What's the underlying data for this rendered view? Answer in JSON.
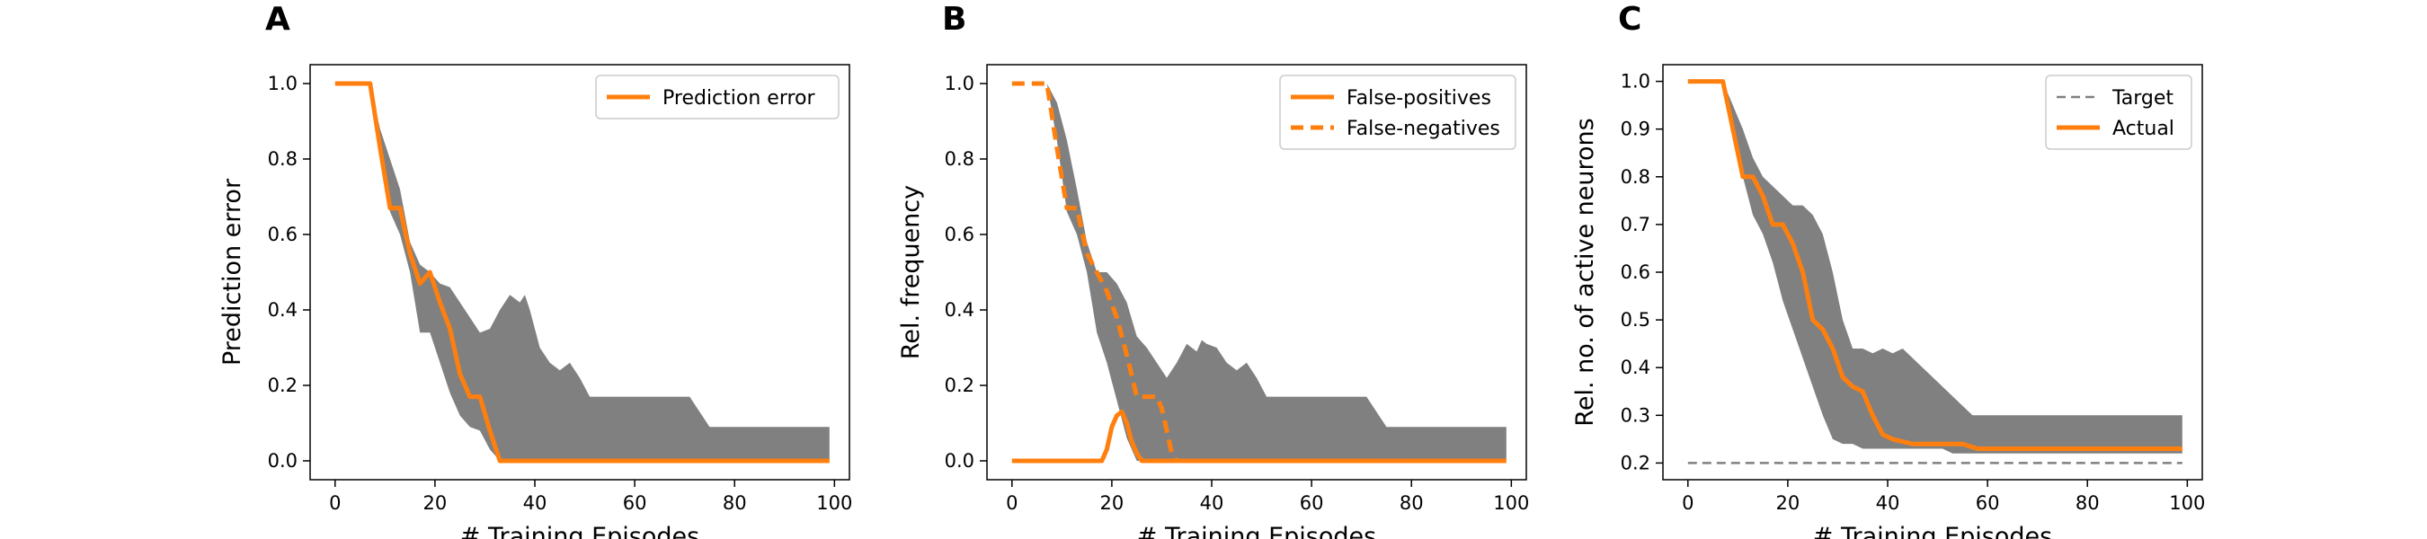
{
  "colors": {
    "series": "#ff7f0e",
    "band": "#808080",
    "target": "#808080",
    "axis": "#000000"
  },
  "chart_data": [
    {
      "panel": "A",
      "type": "line",
      "xlabel": "# Training Episodes",
      "ylabel": "Prediction error",
      "xlim": [
        -5,
        103
      ],
      "ylim": [
        -0.05,
        1.05
      ],
      "xticks": [
        0,
        20,
        40,
        60,
        80,
        100
      ],
      "yticks": [
        0.0,
        0.2,
        0.4,
        0.6,
        0.8,
        1.0
      ],
      "ytick_decimals": 1,
      "legend": "top-right",
      "band": {
        "x": [
          0,
          7,
          9,
          11,
          13,
          15,
          17,
          19,
          21,
          23,
          25,
          27,
          29,
          31,
          33,
          35,
          37,
          38,
          39,
          41,
          43,
          45,
          47,
          49,
          51,
          53,
          55,
          57,
          60,
          65,
          70,
          71,
          75,
          80,
          85,
          90,
          99
        ],
        "upper": [
          1.0,
          1.0,
          0.88,
          0.8,
          0.72,
          0.58,
          0.52,
          0.5,
          0.47,
          0.46,
          0.42,
          0.38,
          0.34,
          0.35,
          0.4,
          0.44,
          0.42,
          0.44,
          0.4,
          0.3,
          0.26,
          0.24,
          0.26,
          0.22,
          0.17,
          0.17,
          0.17,
          0.17,
          0.17,
          0.17,
          0.17,
          0.17,
          0.09,
          0.09,
          0.09,
          0.09,
          0.09
        ],
        "lower": [
          1.0,
          1.0,
          0.85,
          0.66,
          0.6,
          0.5,
          0.34,
          0.34,
          0.26,
          0.18,
          0.12,
          0.09,
          0.08,
          0.03,
          0.0,
          0.0,
          0.0,
          0.0,
          0.0,
          0.0,
          0.0,
          0.0,
          0.0,
          0.0,
          0.0,
          0.0,
          0.0,
          0.0,
          0.0,
          0.0,
          0.0,
          0.0,
          0.0,
          0.0,
          0.0,
          0.0,
          0.0
        ]
      },
      "series": [
        {
          "name": "Prediction error",
          "style": "solid",
          "x": [
            0,
            7,
            9,
            11,
            13,
            15,
            17,
            19,
            21,
            23,
            25,
            27,
            29,
            31,
            33,
            35,
            40,
            50,
            60,
            70,
            80,
            90,
            99
          ],
          "y": [
            1.0,
            1.0,
            0.83,
            0.67,
            0.67,
            0.55,
            0.47,
            0.5,
            0.42,
            0.35,
            0.23,
            0.17,
            0.17,
            0.08,
            0.0,
            0.0,
            0.0,
            0.0,
            0.0,
            0.0,
            0.0,
            0.0,
            0.0
          ]
        }
      ]
    },
    {
      "panel": "B",
      "type": "line",
      "xlabel": "# Training Episodes",
      "ylabel": "Rel. frequency",
      "xlim": [
        -5,
        103
      ],
      "ylim": [
        -0.05,
        1.05
      ],
      "xticks": [
        0,
        20,
        40,
        60,
        80,
        100
      ],
      "yticks": [
        0.0,
        0.2,
        0.4,
        0.6,
        0.8,
        1.0
      ],
      "ytick_decimals": 1,
      "legend": "top-right",
      "band": {
        "x": [
          0,
          7,
          9,
          11,
          13,
          15,
          17,
          19,
          21,
          23,
          25,
          27,
          29,
          31,
          33,
          35,
          37,
          38,
          39,
          41,
          43,
          45,
          47,
          49,
          51,
          53,
          55,
          57,
          60,
          65,
          70,
          71,
          75,
          80,
          85,
          90,
          99
        ],
        "upper": [
          1.0,
          1.0,
          0.95,
          0.85,
          0.72,
          0.58,
          0.5,
          0.5,
          0.47,
          0.42,
          0.33,
          0.3,
          0.26,
          0.22,
          0.26,
          0.31,
          0.29,
          0.32,
          0.31,
          0.3,
          0.26,
          0.24,
          0.26,
          0.22,
          0.17,
          0.17,
          0.17,
          0.17,
          0.17,
          0.17,
          0.17,
          0.17,
          0.09,
          0.09,
          0.09,
          0.09,
          0.09
        ],
        "lower": [
          1.0,
          1.0,
          0.85,
          0.66,
          0.6,
          0.5,
          0.34,
          0.26,
          0.16,
          0.06,
          0.0,
          0.0,
          0.0,
          0.0,
          0.0,
          0.0,
          0.0,
          0.0,
          0.0,
          0.0,
          0.0,
          0.0,
          0.0,
          0.0,
          0.0,
          0.0,
          0.0,
          0.0,
          0.0,
          0.0,
          0.0,
          0.0,
          0.0,
          0.0,
          0.0,
          0.0,
          0.0
        ]
      },
      "series": [
        {
          "name": "False-positives",
          "style": "solid",
          "x": [
            0,
            18,
            19,
            20,
            21,
            22,
            23,
            24,
            25,
            26,
            27,
            30,
            40,
            60,
            80,
            99
          ],
          "y": [
            0.0,
            0.0,
            0.03,
            0.09,
            0.12,
            0.13,
            0.1,
            0.05,
            0.02,
            0.0,
            0.0,
            0.0,
            0.0,
            0.0,
            0.0,
            0.0
          ]
        },
        {
          "name": "False-negatives",
          "style": "dashed",
          "x": [
            0,
            7,
            9,
            11,
            13,
            15,
            17,
            19,
            21,
            23,
            25,
            27,
            29,
            30,
            31,
            32,
            33,
            40,
            60,
            80,
            99
          ],
          "y": [
            1.0,
            1.0,
            0.83,
            0.67,
            0.67,
            0.55,
            0.5,
            0.45,
            0.38,
            0.28,
            0.17,
            0.17,
            0.17,
            0.14,
            0.08,
            0.02,
            0.0,
            0.0,
            0.0,
            0.0,
            0.0
          ]
        }
      ]
    },
    {
      "panel": "C",
      "type": "line",
      "xlabel": "# Training Episodes",
      "ylabel": "Rel. no. of active neurons",
      "xlim": [
        -5,
        103
      ],
      "ylim": [
        0.165,
        1.035
      ],
      "xticks": [
        0,
        20,
        40,
        60,
        80,
        100
      ],
      "yticks": [
        0.2,
        0.3,
        0.4,
        0.5,
        0.6,
        0.7,
        0.8,
        0.9,
        1.0
      ],
      "ytick_decimals": 1,
      "legend": "top-right",
      "band": {
        "x": [
          0,
          7,
          9,
          11,
          13,
          15,
          17,
          19,
          21,
          23,
          25,
          27,
          29,
          31,
          33,
          35,
          37,
          39,
          41,
          43,
          45,
          47,
          49,
          51,
          53,
          55,
          57,
          59,
          65,
          70,
          75,
          80,
          85,
          90,
          95,
          99
        ],
        "upper": [
          1.0,
          1.0,
          0.95,
          0.9,
          0.84,
          0.8,
          0.78,
          0.76,
          0.74,
          0.74,
          0.72,
          0.68,
          0.6,
          0.5,
          0.44,
          0.44,
          0.43,
          0.44,
          0.43,
          0.44,
          0.42,
          0.4,
          0.38,
          0.36,
          0.34,
          0.32,
          0.3,
          0.3,
          0.3,
          0.3,
          0.3,
          0.3,
          0.3,
          0.3,
          0.3,
          0.3
        ],
        "lower": [
          1.0,
          1.0,
          0.9,
          0.8,
          0.72,
          0.68,
          0.62,
          0.54,
          0.48,
          0.42,
          0.36,
          0.3,
          0.25,
          0.24,
          0.24,
          0.23,
          0.23,
          0.23,
          0.23,
          0.23,
          0.23,
          0.23,
          0.23,
          0.23,
          0.22,
          0.22,
          0.22,
          0.22,
          0.22,
          0.22,
          0.22,
          0.22,
          0.22,
          0.22,
          0.22,
          0.22
        ]
      },
      "series": [
        {
          "name": "Target",
          "style": "dashed-thin",
          "x": [
            0,
            99
          ],
          "y": [
            0.2,
            0.2
          ]
        },
        {
          "name": "Actual",
          "style": "solid",
          "x": [
            0,
            7,
            9,
            11,
            13,
            15,
            17,
            19,
            21,
            23,
            25,
            27,
            29,
            31,
            33,
            35,
            37,
            39,
            41,
            45,
            50,
            55,
            58,
            60,
            70,
            80,
            90,
            99
          ],
          "y": [
            1.0,
            1.0,
            0.9,
            0.8,
            0.8,
            0.76,
            0.7,
            0.7,
            0.66,
            0.6,
            0.5,
            0.48,
            0.44,
            0.38,
            0.36,
            0.35,
            0.3,
            0.26,
            0.25,
            0.24,
            0.24,
            0.24,
            0.23,
            0.23,
            0.23,
            0.23,
            0.23,
            0.23
          ]
        }
      ]
    }
  ]
}
